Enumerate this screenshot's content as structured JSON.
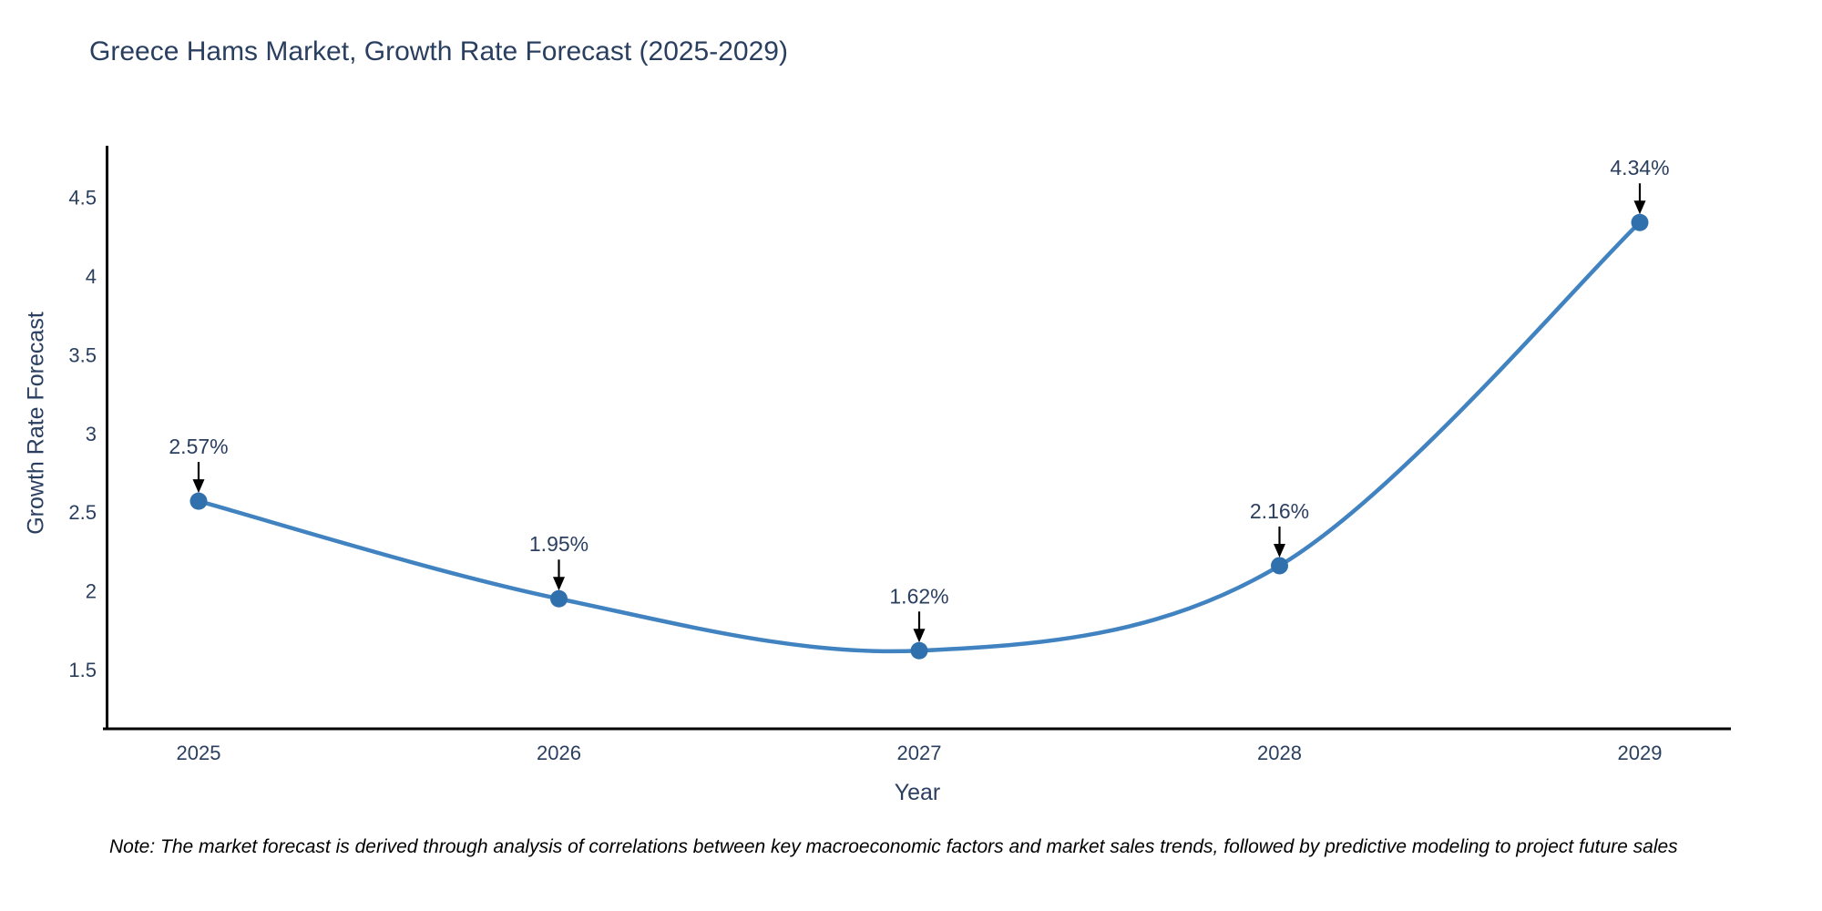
{
  "title": {
    "text": "Greece Hams Market, Growth Rate Forecast (2025-2029)"
  },
  "note": {
    "text": "Note: The market forecast is derived through analysis of correlations between key macroeconomic factors and market sales trends, followed by predictive modeling to project future sales"
  },
  "chart_data": {
    "type": "line",
    "title": "Greece Hams Market, Growth Rate Forecast (2025-2029)",
    "x": [
      2025,
      2026,
      2027,
      2028,
      2029
    ],
    "categories": [
      "2025",
      "2026",
      "2027",
      "2028",
      "2029"
    ],
    "series": [
      {
        "name": "Growth Rate Forecast",
        "values": [
          2.57,
          1.95,
          1.62,
          2.16,
          4.34
        ],
        "point_labels": [
          "2.57%",
          "1.95%",
          "1.62%",
          "2.16%",
          "4.34%"
        ]
      }
    ],
    "xlabel": "Year",
    "ylabel": "Growth Rate Forecast",
    "yticks": [
      1.5,
      2,
      2.5,
      3,
      3.5,
      4,
      4.5
    ],
    "ytick_labels": [
      "1.5",
      "2",
      "2.5",
      "3",
      "3.5",
      "4",
      "4.5"
    ],
    "ylim": [
      1.12,
      4.83
    ],
    "grid": false,
    "legend_visible": false,
    "line_shape": "spline",
    "colors": {
      "line": "#4183c0",
      "marker": "#3071ad",
      "axis_line": "#000000",
      "text": "#2a3f5f",
      "annotation_arrow": "#000000",
      "note_text": "#000000"
    }
  }
}
